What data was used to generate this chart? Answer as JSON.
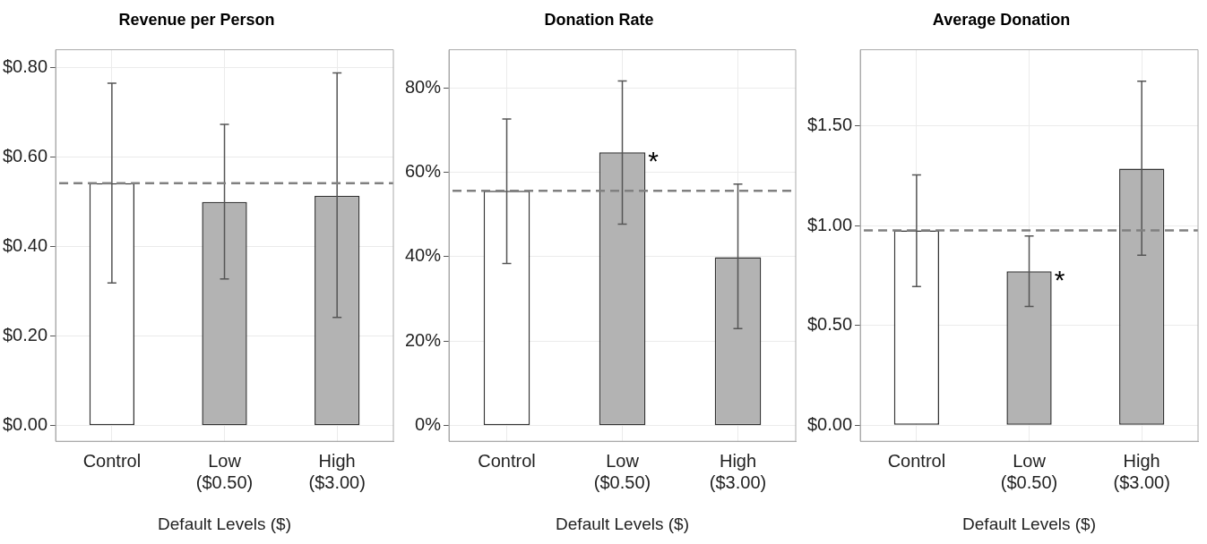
{
  "chart_data": [
    {
      "type": "bar",
      "title": "Revenue per Person",
      "xlabel": "Default Levels ($)",
      "categories": [
        "Control",
        "Low\n($0.50)",
        "High\n($3.00)"
      ],
      "values": [
        0.542,
        0.5,
        0.514
      ],
      "colors": [
        "#ffffff",
        "#b3b3b3",
        "#b3b3b3"
      ],
      "errors": [
        [
          0.319,
          0.765
        ],
        [
          0.328,
          0.673
        ],
        [
          0.242,
          0.788
        ]
      ],
      "ylim": [
        -0.035,
        0.84
      ],
      "yticks": [
        {
          "value": 0,
          "label": "$0.00"
        },
        {
          "value": 0.2,
          "label": "$0.20"
        },
        {
          "value": 0.4,
          "label": "$0.40"
        },
        {
          "value": 0.6,
          "label": "$0.60"
        },
        {
          "value": 0.8,
          "label": "$0.80"
        }
      ],
      "ref_lines": [
        {
          "axis": "y",
          "value": 0.542,
          "color": "#808080",
          "line_style": "dashed"
        }
      ],
      "grid": true
    },
    {
      "type": "bar",
      "title": "Donation Rate",
      "xlabel": "Default Levels ($)",
      "categories": [
        "Control",
        "Low\n($0.50)",
        "High\n($3.00)"
      ],
      "values": [
        55.6,
        64.7,
        39.9
      ],
      "colors": [
        "#ffffff",
        "#b3b3b3",
        "#b3b3b3"
      ],
      "errors": [
        [
          38.4,
          72.6
        ],
        [
          47.7,
          81.6
        ],
        [
          23.0,
          57.2
        ]
      ],
      "ylim": [
        -3.7,
        89
      ],
      "yticks": [
        {
          "value": 0,
          "label": "0%"
        },
        {
          "value": 20,
          "label": "20%"
        },
        {
          "value": 40,
          "label": "40%"
        },
        {
          "value": 60,
          "label": "60%"
        },
        {
          "value": 80,
          "label": "80%"
        }
      ],
      "ref_lines": [
        {
          "axis": "y",
          "value": 55.6,
          "color": "#808080",
          "line_style": "dashed"
        }
      ],
      "grid": true,
      "annotations": [
        {
          "text": "*",
          "x": "Low\n($0.50)",
          "y": 64.7
        }
      ]
    },
    {
      "type": "bar",
      "title": "Average Donation",
      "xlabel": "Default Levels ($)",
      "categories": [
        "Control",
        "Low\n($0.50)",
        "High\n($3.00)"
      ],
      "values": [
        0.976,
        0.771,
        1.285
      ],
      "colors": [
        "#ffffff",
        "#b3b3b3",
        "#b3b3b3"
      ],
      "errors": [
        [
          0.695,
          1.253
        ],
        [
          0.595,
          0.948
        ],
        [
          0.851,
          1.723
        ]
      ],
      "ylim": [
        -0.08,
        1.88
      ],
      "yticks": [
        {
          "value": 0,
          "label": "$0.00"
        },
        {
          "value": 0.5,
          "label": "$0.50"
        },
        {
          "value": 1,
          "label": "$1.00"
        },
        {
          "value": 1.5,
          "label": "$1.50"
        }
      ],
      "ref_lines": [
        {
          "axis": "y",
          "value": 0.976,
          "color": "#808080",
          "line_style": "dashed"
        }
      ],
      "grid": true,
      "annotations": [
        {
          "text": "*",
          "x": "Low\n($0.50)",
          "y": 0.771
        }
      ]
    }
  ]
}
